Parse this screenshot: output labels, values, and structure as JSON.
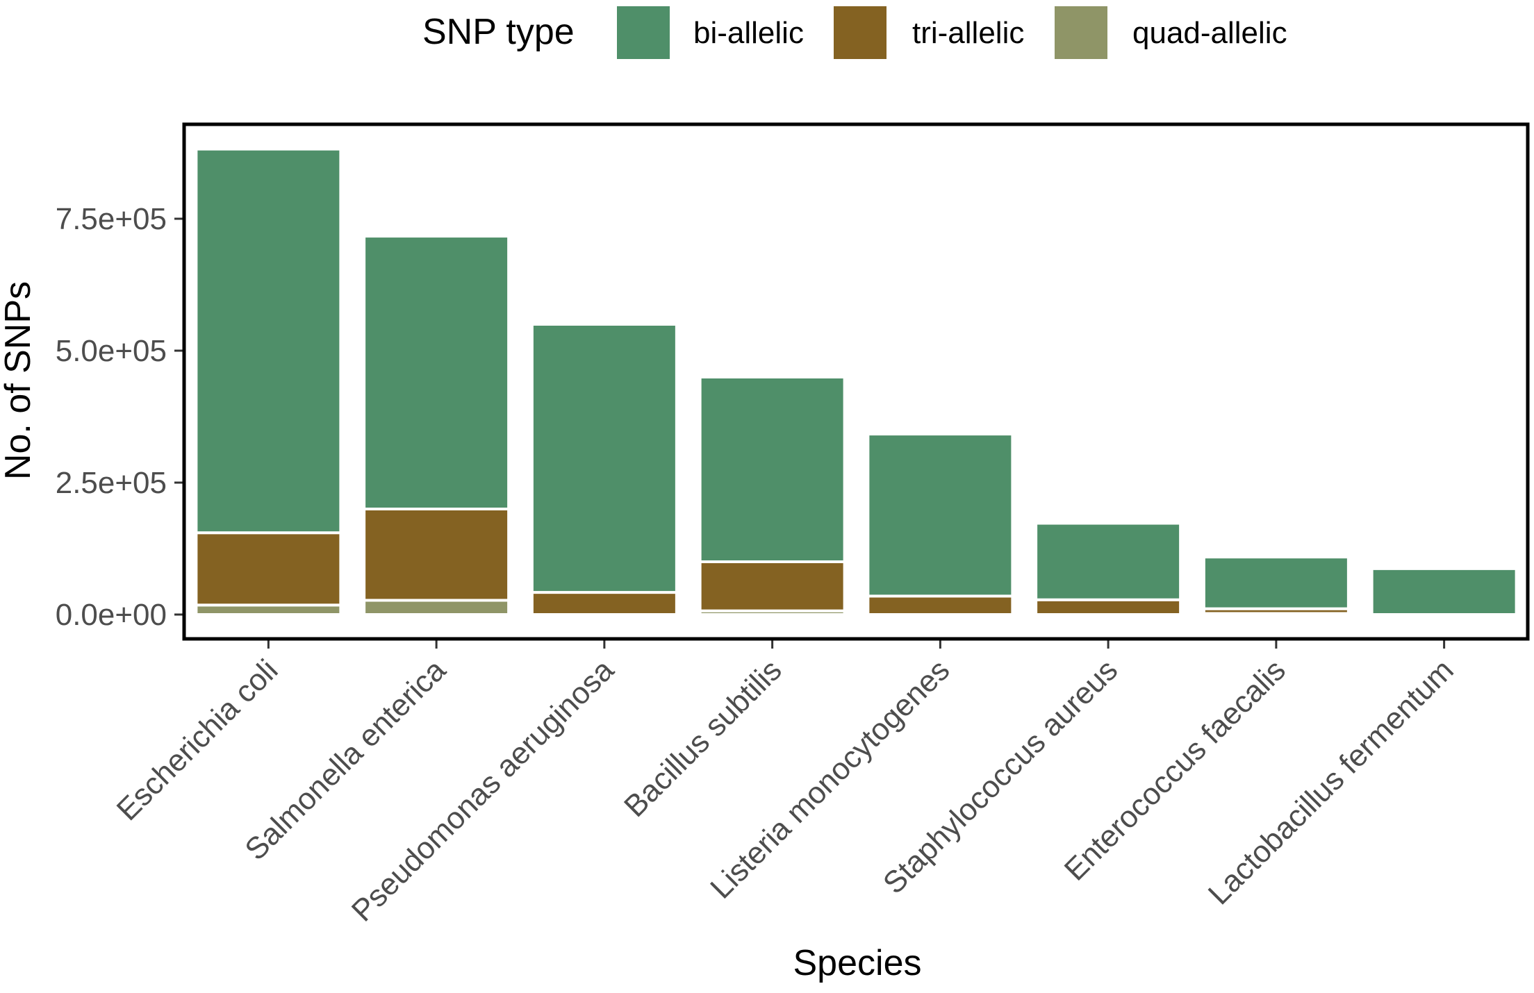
{
  "chart_data": {
    "type": "bar",
    "stacked": true,
    "xlabel": "Species",
    "ylabel": "No. of SNPs",
    "ylim": [
      0,
      880000
    ],
    "yticks": [
      0,
      250000,
      500000,
      750000
    ],
    "ytick_labels": [
      "0.0e+00",
      "2.5e+05",
      "5.0e+05",
      "7.5e+05"
    ],
    "grid": false,
    "legend": {
      "title": "SNP type",
      "position": "top"
    },
    "categories": [
      "Escherichia coli",
      "Salmonella enterica",
      "Pseudomonas aeruginosa",
      "Bacillus subtilis",
      "Listeria monocytogenes",
      "Staphylococcus aureus",
      "Enterococcus faecalis",
      "Lactobacillus fermentum"
    ],
    "series": [
      {
        "name": "quad-allelic",
        "color": "#8f9567",
        "values": [
          18000,
          27000,
          0,
          7000,
          0,
          0,
          2000,
          0
        ]
      },
      {
        "name": "tri-allelic",
        "color": "#846222",
        "values": [
          137000,
          173000,
          42000,
          93000,
          35000,
          28000,
          9000,
          0
        ]
      },
      {
        "name": "bi-allelic",
        "color": "#4f8f69",
        "values": [
          727000,
          517000,
          508000,
          350000,
          307000,
          145000,
          98000,
          87000
        ]
      }
    ]
  }
}
